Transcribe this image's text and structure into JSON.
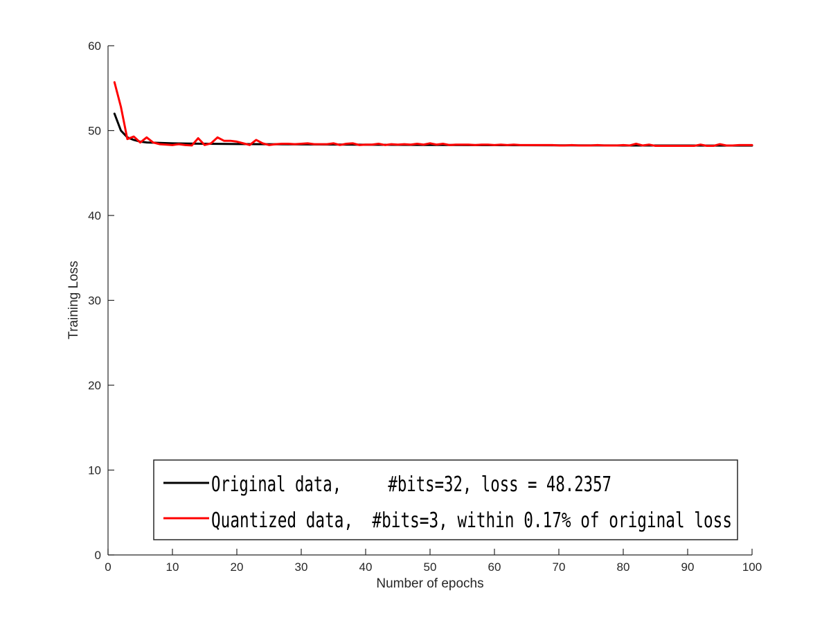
{
  "chart_data": {
    "type": "line",
    "xlabel": "Number of epochs",
    "ylabel": "Training Loss",
    "xlim": [
      0,
      100
    ],
    "ylim": [
      0,
      60
    ],
    "xticks": [
      0,
      10,
      20,
      30,
      40,
      50,
      60,
      70,
      80,
      90,
      100
    ],
    "yticks": [
      0,
      10,
      20,
      30,
      40,
      50,
      60
    ],
    "grid": false,
    "legend_position": "bottom",
    "series": [
      {
        "name": "Original data,     #bits=32, loss = 48.2357",
        "color": "#000000",
        "x": [
          1,
          2,
          3,
          4,
          5,
          6,
          8,
          10,
          15,
          20,
          30,
          40,
          50,
          60,
          70,
          80,
          90,
          100
        ],
        "y": [
          52.0,
          50.0,
          49.2,
          48.9,
          48.7,
          48.6,
          48.55,
          48.5,
          48.45,
          48.42,
          48.38,
          48.34,
          48.31,
          48.29,
          48.27,
          48.25,
          48.24,
          48.2357
        ]
      },
      {
        "name": "Quantized data,  #bits=3, within 0.17% of original loss",
        "color": "#ff0000",
        "x": [
          1,
          2,
          3,
          4,
          5,
          6,
          7,
          8,
          9,
          10,
          11,
          12,
          13,
          14,
          15,
          16,
          17,
          18,
          19,
          20,
          21,
          22,
          23,
          24,
          25,
          26,
          27,
          28,
          29,
          30,
          31,
          32,
          33,
          34,
          35,
          36,
          37,
          38,
          39,
          40,
          41,
          42,
          43,
          44,
          45,
          46,
          47,
          48,
          49,
          50,
          51,
          52,
          53,
          54,
          55,
          56,
          57,
          58,
          59,
          60,
          61,
          62,
          63,
          64,
          65,
          66,
          67,
          68,
          69,
          70,
          71,
          72,
          73,
          74,
          75,
          76,
          77,
          78,
          79,
          80,
          81,
          82,
          83,
          84,
          85,
          86,
          87,
          88,
          89,
          90,
          91,
          92,
          93,
          94,
          95,
          96,
          97,
          98,
          99,
          100
        ],
        "y": [
          55.7,
          52.8,
          49.0,
          49.3,
          48.6,
          49.2,
          48.6,
          48.4,
          48.35,
          48.3,
          48.4,
          48.3,
          48.25,
          49.1,
          48.3,
          48.5,
          49.2,
          48.8,
          48.8,
          48.7,
          48.5,
          48.3,
          48.9,
          48.5,
          48.3,
          48.4,
          48.45,
          48.45,
          48.4,
          48.45,
          48.5,
          48.4,
          48.4,
          48.4,
          48.5,
          48.3,
          48.45,
          48.5,
          48.3,
          48.35,
          48.35,
          48.45,
          48.3,
          48.4,
          48.35,
          48.4,
          48.35,
          48.45,
          48.35,
          48.5,
          48.35,
          48.45,
          48.3,
          48.35,
          48.35,
          48.35,
          48.3,
          48.35,
          48.35,
          48.3,
          48.35,
          48.3,
          48.35,
          48.3,
          48.3,
          48.3,
          48.3,
          48.3,
          48.3,
          48.25,
          48.25,
          48.3,
          48.25,
          48.25,
          48.25,
          48.3,
          48.25,
          48.25,
          48.25,
          48.3,
          48.25,
          48.45,
          48.25,
          48.35,
          48.2,
          48.2,
          48.2,
          48.2,
          48.2,
          48.2,
          48.2,
          48.35,
          48.2,
          48.2,
          48.4,
          48.25,
          48.25,
          48.3,
          48.3,
          48.3
        ]
      }
    ]
  }
}
